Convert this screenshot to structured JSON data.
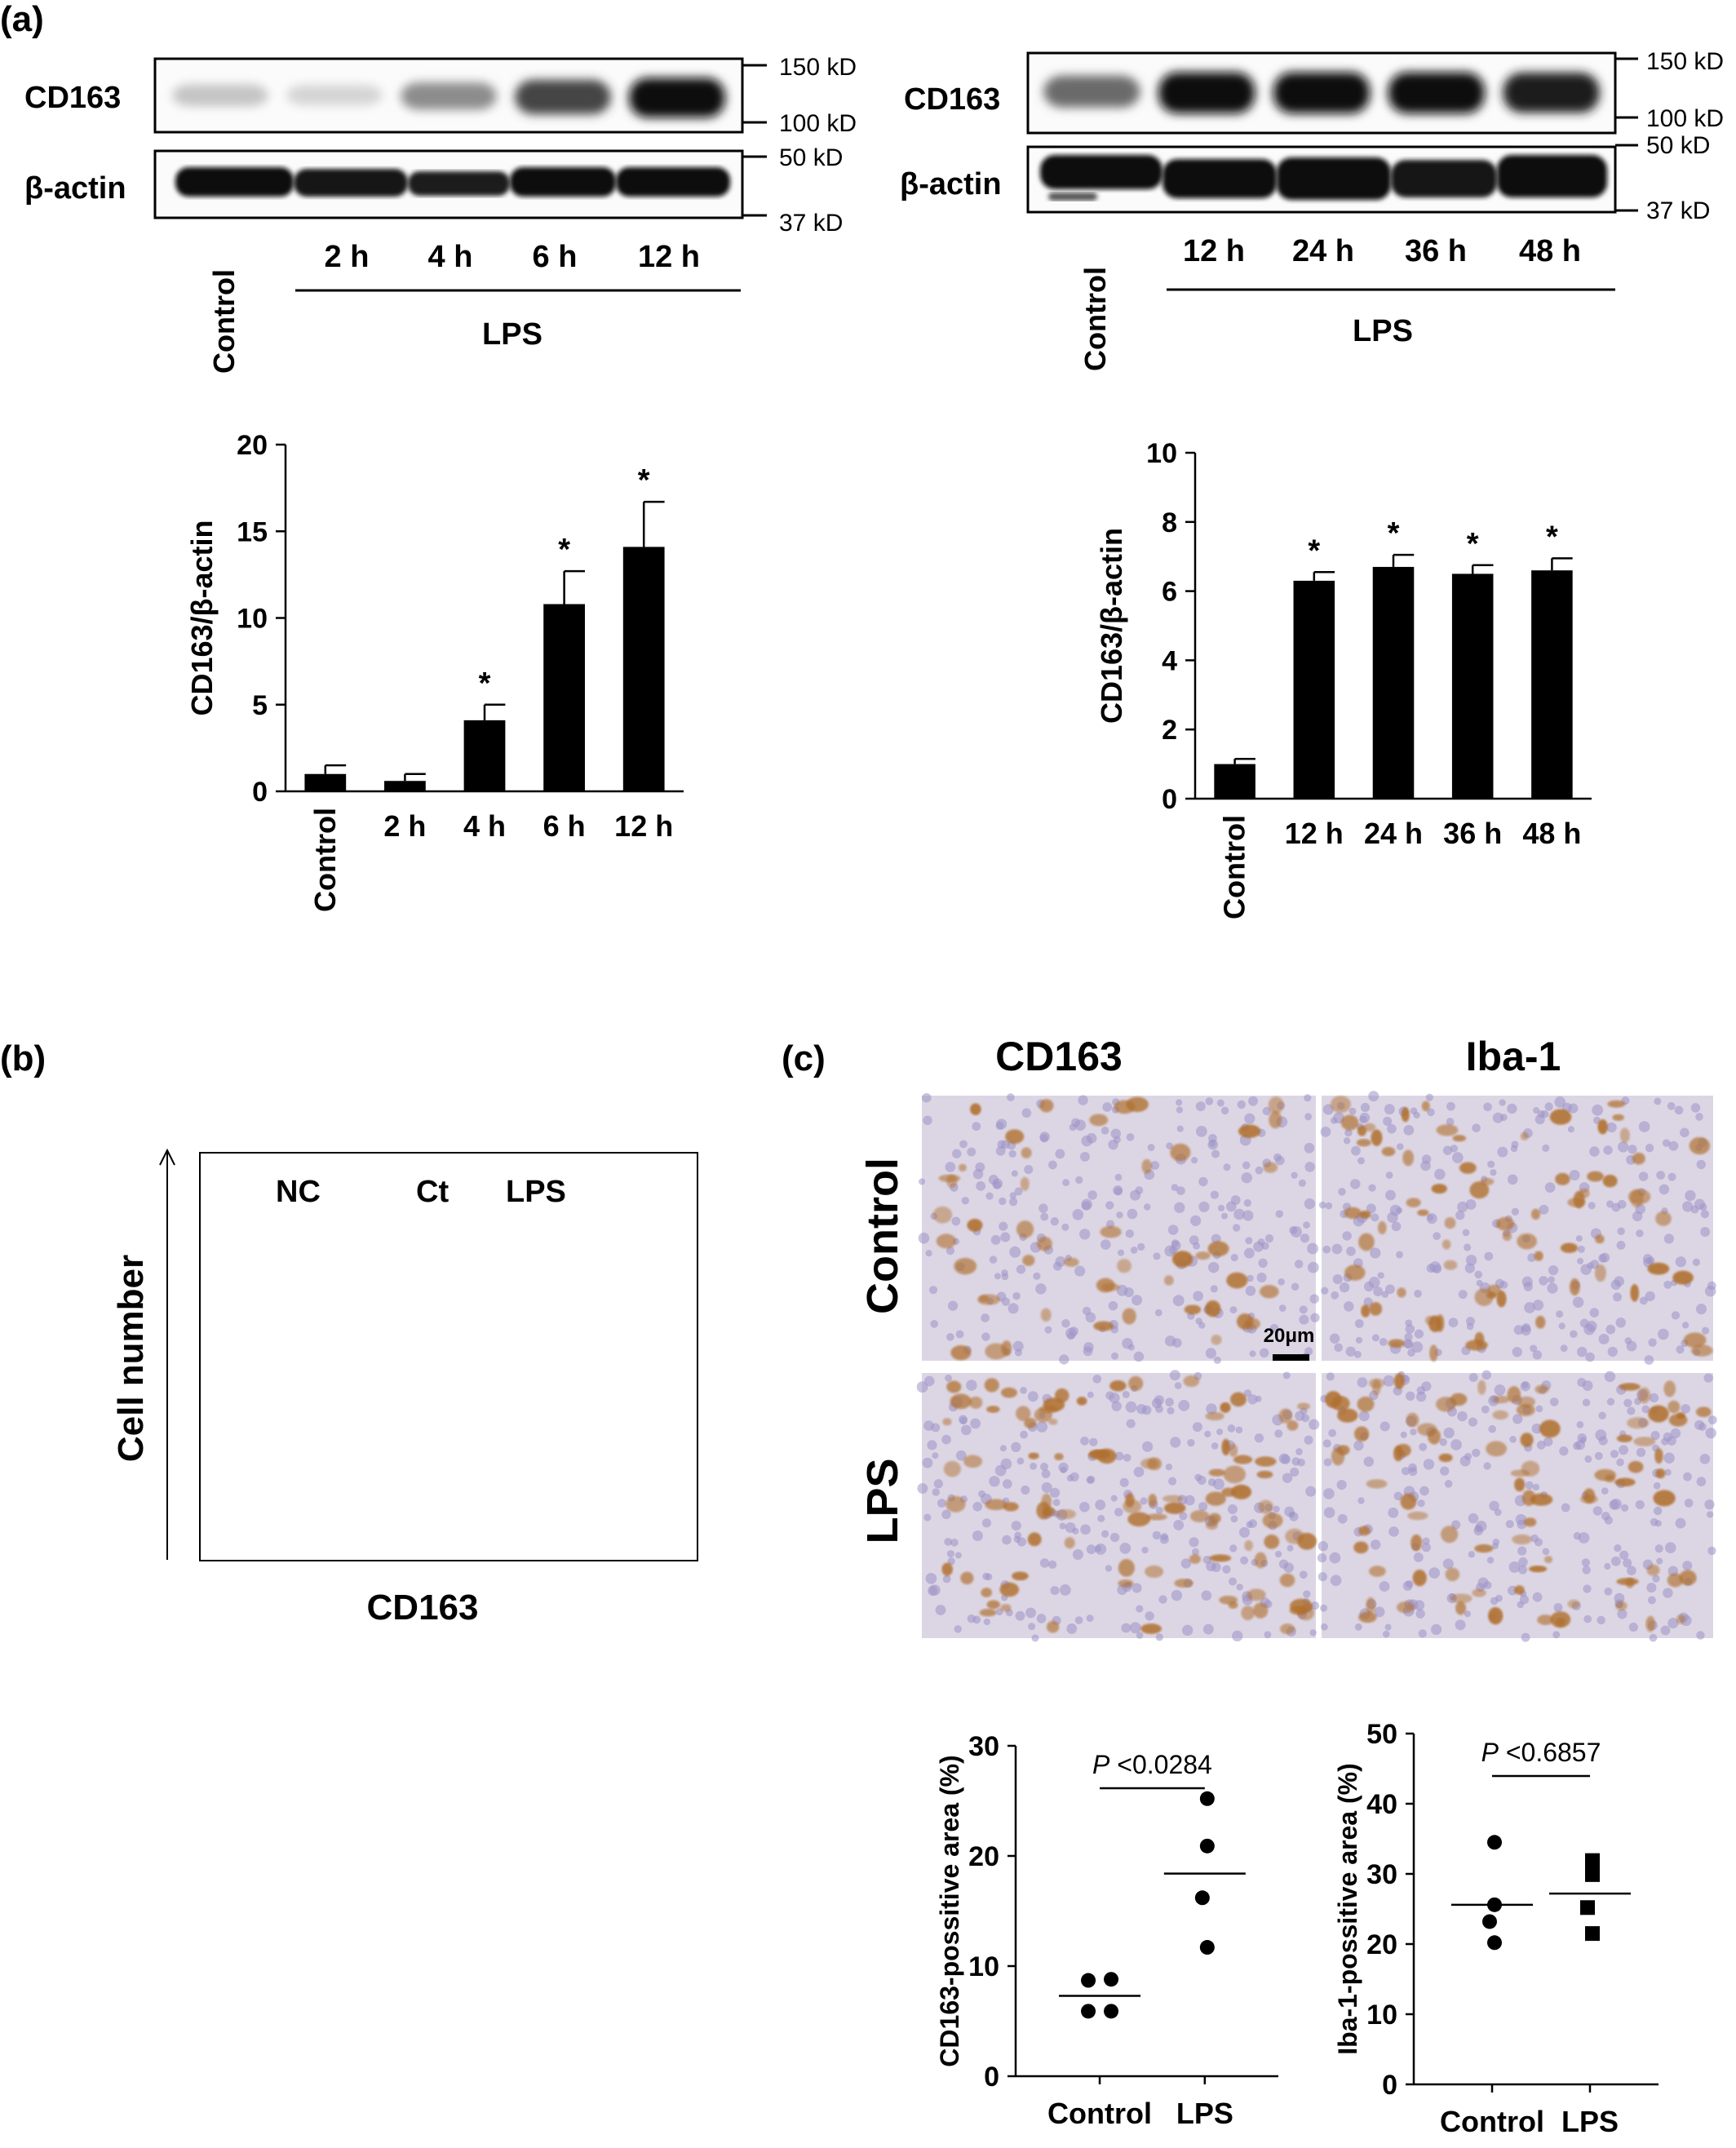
{
  "panel_labels": {
    "a": "(a)",
    "b": "(b)",
    "c": "(c)"
  },
  "blots": [
    {
      "id": "left",
      "rows": [
        "CD163",
        "β-actin"
      ],
      "markers_top": [
        "150 kD",
        "100 kD"
      ],
      "markers_bottom": [
        "50 kD",
        "37 kD"
      ],
      "control_label": "Control",
      "lanes": [
        "2 h",
        "4 h",
        "6 h",
        "12 h"
      ],
      "group_label": "LPS",
      "cd163_band_intensity": [
        0.15,
        0.08,
        0.4,
        0.72,
        0.95
      ]
    },
    {
      "id": "right",
      "rows": [
        "CD163",
        "β-actin"
      ],
      "markers_top": [
        "150 kD",
        "100 kD"
      ],
      "markers_bottom": [
        "50 kD",
        "37 kD"
      ],
      "control_label": "Control",
      "lanes": [
        "12 h",
        "24 h",
        "36 h",
        "48 h"
      ],
      "group_label": "LPS",
      "cd163_band_intensity": [
        0.55,
        0.95,
        0.95,
        0.95,
        0.9
      ]
    }
  ],
  "flow": {
    "ylabel": "Cell number",
    "xlabel": "CD163",
    "curve_labels": [
      "NC",
      "Ct",
      "LPS"
    ],
    "lps_color": "#5b3f9e"
  },
  "ihc": {
    "col_headers": [
      "CD163",
      "Iba-1"
    ],
    "row_headers": [
      "Control",
      "LPS"
    ],
    "scale_bar": "20μm",
    "stain_color": "#b0702e",
    "bg_color": "#dcd6e4"
  },
  "chart_data": [
    {
      "type": "bar",
      "categories": [
        "Control",
        "2 h",
        "4 h",
        "6 h",
        "12 h"
      ],
      "values": [
        1.0,
        0.6,
        4.1,
        10.8,
        14.1
      ],
      "errors": [
        0.5,
        0.4,
        0.9,
        1.9,
        2.6
      ],
      "significant": [
        false,
        false,
        true,
        true,
        true
      ],
      "ylabel": "CD163/β-actin",
      "ylim": [
        0,
        20
      ],
      "yticks": [
        0,
        5,
        10,
        15,
        20
      ]
    },
    {
      "type": "bar",
      "categories": [
        "Control",
        "12 h",
        "24 h",
        "36 h",
        "48 h"
      ],
      "values": [
        1.0,
        6.3,
        6.7,
        6.5,
        6.6
      ],
      "errors": [
        0.15,
        0.25,
        0.35,
        0.25,
        0.35
      ],
      "significant": [
        false,
        true,
        true,
        true,
        true
      ],
      "ylabel": "CD163/β-actin",
      "ylim": [
        0,
        10
      ],
      "yticks": [
        0,
        2,
        4,
        6,
        8,
        10
      ]
    },
    {
      "type": "scatter",
      "categories": [
        "Control",
        "LPS"
      ],
      "points": [
        [
          8.8,
          8.7,
          5.9,
          5.9
        ],
        [
          25.2,
          20.9,
          16.2,
          11.7
        ]
      ],
      "means": [
        7.3,
        18.4
      ],
      "markers": [
        "circle",
        "circle"
      ],
      "ylabel": "CD163-possitive area (%)",
      "ylim": [
        0,
        30
      ],
      "yticks": [
        0,
        10,
        20,
        30
      ],
      "p_prefix": "P",
      "p_value": " <0.0284"
    },
    {
      "type": "scatter",
      "categories": [
        "Control",
        "LPS"
      ],
      "points": [
        [
          34.5,
          25.6,
          23.2,
          20.2
        ],
        [
          31.9,
          29.9,
          25.2,
          21.5
        ]
      ],
      "means": [
        25.6,
        27.2
      ],
      "markers": [
        "circle",
        "square"
      ],
      "ylabel": "Iba-1-possitive area (%)",
      "ylim": [
        0,
        50
      ],
      "yticks": [
        0,
        10,
        20,
        30,
        40,
        50
      ],
      "p_prefix": "P",
      "p_value": " <0.6857"
    }
  ]
}
